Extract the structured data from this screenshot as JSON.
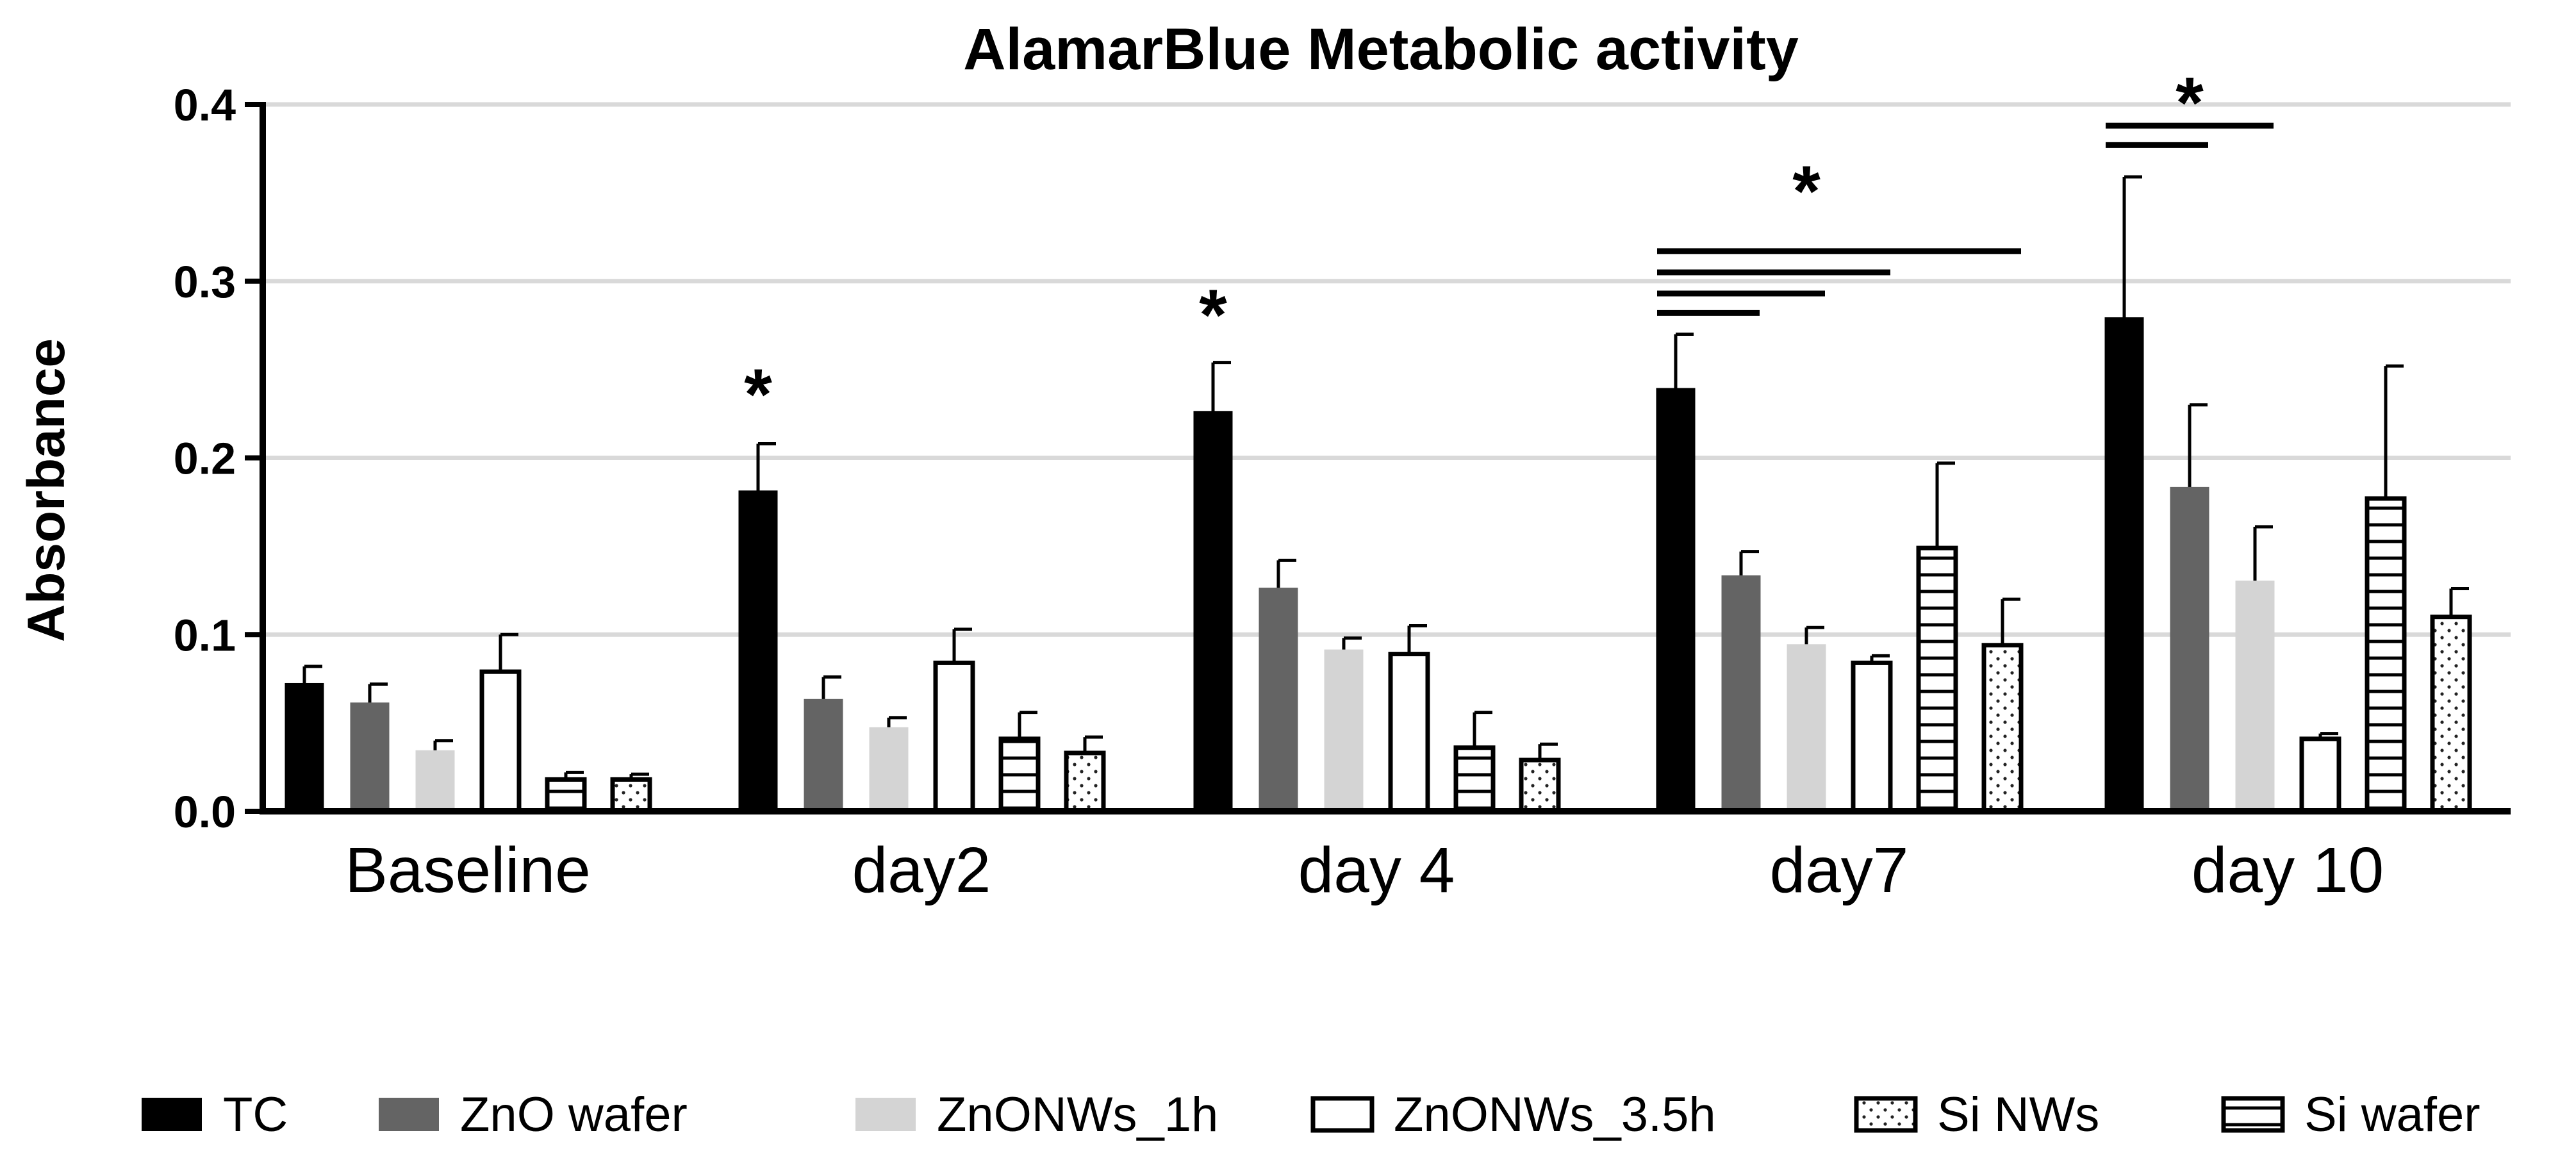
{
  "chart_data": {
    "type": "bar",
    "title": "AlamarBlue Metabolic activity",
    "xlabel": "",
    "ylabel": "Absorbance",
    "ylim": [
      0,
      0.4
    ],
    "yticks": [
      "0.0",
      "0.1",
      "0.2",
      "0.3",
      "0.4"
    ],
    "ytick_values": [
      0,
      0.1,
      0.2,
      0.3,
      0.4
    ],
    "grid": true,
    "categories": [
      "Baseline",
      "day2",
      "day 4",
      "day7",
      "day 10"
    ],
    "series": [
      {
        "name": "TC",
        "values": [
          0.072,
          0.181,
          0.226,
          0.239,
          0.279
        ],
        "errors": [
          0.01,
          0.027,
          0.028,
          0.031,
          0.08
        ],
        "fill": "#000000",
        "pattern": "solid"
      },
      {
        "name": "ZnO wafer",
        "values": [
          0.061,
          0.063,
          0.126,
          0.133,
          0.183
        ],
        "errors": [
          0.011,
          0.013,
          0.016,
          0.014,
          0.047
        ],
        "fill": "#646464",
        "pattern": "solid"
      },
      {
        "name": "ZnONWs_1h",
        "values": [
          0.034,
          0.047,
          0.091,
          0.094,
          0.13
        ],
        "errors": [
          0.006,
          0.006,
          0.007,
          0.01,
          0.031
        ],
        "fill": "#d4d4d4",
        "pattern": "solid"
      },
      {
        "name": "ZnONWs_3.5h",
        "values": [
          0.079,
          0.084,
          0.089,
          0.084,
          0.041
        ],
        "errors": [
          0.021,
          0.019,
          0.016,
          0.004,
          0.003
        ],
        "fill": "#ffffff",
        "pattern": "solid"
      },
      {
        "name": "Si wafer",
        "values": [
          0.018,
          0.041,
          0.036,
          0.149,
          0.177
        ],
        "errors": [
          0.004,
          0.015,
          0.02,
          0.048,
          0.075
        ],
        "fill": "#ffffff",
        "pattern": "hlines"
      },
      {
        "name": "Si NWs",
        "values": [
          0.018,
          0.033,
          0.029,
          0.094,
          0.11
        ],
        "errors": [
          0.003,
          0.009,
          0.009,
          0.026,
          0.016
        ],
        "fill": "#ffffff",
        "pattern": "dots"
      }
    ],
    "legend": {
      "placement": "bottom",
      "entries": [
        "TC",
        "ZnO wafer",
        "ZnONWs_1h",
        "ZnONWs_3.5h",
        "Si NWs",
        "Si wafer"
      ],
      "series_index": [
        0,
        1,
        2,
        3,
        5,
        4
      ]
    },
    "annotations": [
      {
        "text": "*",
        "category": 1,
        "series": 0,
        "value": 0.24
      },
      {
        "text": "*",
        "category": 2,
        "series": 0,
        "value": 0.285
      },
      {
        "text": "*",
        "category": 3,
        "anchor_series": 2,
        "value": 0.355
      },
      {
        "text": "*",
        "category": 4,
        "anchor_series": 1,
        "value": 0.405
      }
    ],
    "significance_brackets": [
      {
        "category": 3,
        "from_series": 0,
        "to_series": 1,
        "value": 0.282
      },
      {
        "category": 3,
        "from_series": 0,
        "to_series": 2,
        "value": 0.293
      },
      {
        "category": 3,
        "from_series": 0,
        "to_series": 3,
        "value": 0.305
      },
      {
        "category": 3,
        "from_series": 0,
        "to_series": 5,
        "value": 0.317
      },
      {
        "category": 4,
        "from_series": 0,
        "to_series": 1,
        "value": 0.377
      },
      {
        "category": 4,
        "from_series": 0,
        "to_series": 2,
        "value": 0.388
      }
    ],
    "colors": {
      "axis": "#000000",
      "grid": "#d9d9d9",
      "bar_edge": "#000000",
      "text": "#000000"
    }
  }
}
